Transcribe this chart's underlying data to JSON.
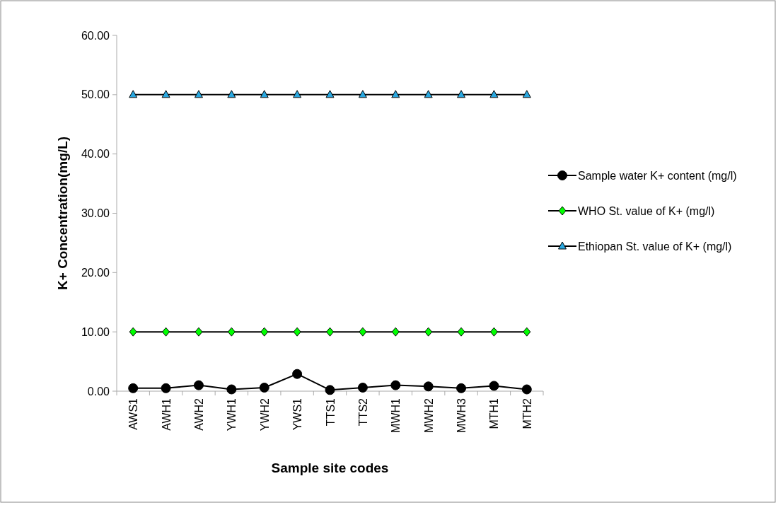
{
  "chart_data": {
    "type": "line",
    "xlabel": "Sample site codes",
    "ylabel": "K+ Concentration(mg/L)",
    "categories": [
      "AWS1",
      "AWH1",
      "AWH2",
      "YWH1",
      "YWH2",
      "YWS1",
      "TTS1",
      "TTS2",
      "MWH1",
      "MWH2",
      "MWH3",
      "MTH1",
      "MTH2"
    ],
    "series": [
      {
        "name": "Sample water K+ content (mg/l)",
        "color": "#000000",
        "marker": "circle",
        "values": [
          0.5,
          0.5,
          1.0,
          0.3,
          0.6,
          2.9,
          0.2,
          0.6,
          1.0,
          0.8,
          0.5,
          0.9,
          0.3
        ]
      },
      {
        "name": "WHO St. value of K+ (mg/l)",
        "color": "#00ff00",
        "marker": "diamond",
        "values": [
          10,
          10,
          10,
          10,
          10,
          10,
          10,
          10,
          10,
          10,
          10,
          10,
          10
        ]
      },
      {
        "name": "Ethiopan St. value of K+ (mg/l)",
        "color": "#2aa8e0",
        "marker": "triangle",
        "values": [
          50,
          50,
          50,
          50,
          50,
          50,
          50,
          50,
          50,
          50,
          50,
          50,
          50
        ]
      }
    ],
    "ylim": [
      0,
      60
    ],
    "yticks": [
      {
        "value": 0,
        "label": "0.00"
      },
      {
        "value": 10,
        "label": "10.00"
      },
      {
        "value": 20,
        "label": "20.00"
      },
      {
        "value": 30,
        "label": "30.00"
      },
      {
        "value": 40,
        "label": "40.00"
      },
      {
        "value": 50,
        "label": "50.00"
      },
      {
        "value": 60,
        "label": "60.00"
      }
    ],
    "legend": "right",
    "grid": false
  }
}
